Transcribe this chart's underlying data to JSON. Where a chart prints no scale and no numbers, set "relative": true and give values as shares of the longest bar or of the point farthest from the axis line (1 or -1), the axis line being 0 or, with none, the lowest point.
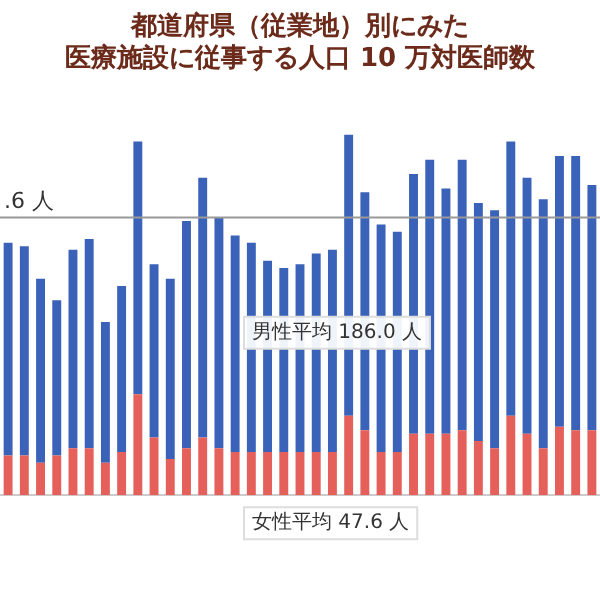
{
  "chart_data": {
    "type": "bar",
    "title": [
      "都道府県（従業地）別にみた",
      "医療施設に従事する人口 10 万対医師数"
    ],
    "relative": true,
    "stacked": true,
    "legend": false,
    "grid": false,
    "categories": [
      null,
      null,
      null,
      null,
      null,
      null,
      null,
      null,
      null,
      null,
      null,
      null,
      null,
      null,
      null,
      null,
      null,
      null,
      null,
      null,
      null,
      null,
      null,
      null,
      null,
      null,
      null,
      null,
      null,
      null,
      null,
      null,
      null,
      null,
      null,
      null,
      null
    ],
    "series": [
      {
        "color": "#e5605a",
        "values": [
          0.11,
          0.11,
          0.09,
          0.11,
          0.13,
          0.13,
          0.09,
          0.12,
          0.28,
          0.16,
          0.1,
          0.13,
          0.16,
          0.13,
          0.12,
          0.12,
          0.12,
          0.12,
          0.12,
          0.12,
          0.12,
          0.22,
          0.18,
          0.12,
          0.12,
          0.17,
          0.17,
          0.17,
          0.18,
          0.15,
          0.13,
          0.22,
          0.17,
          0.13,
          0.19,
          0.18,
          0.18
        ]
      },
      {
        "color": "#3a62b8",
        "values": [
          0.59,
          0.58,
          0.51,
          0.43,
          0.55,
          0.58,
          0.39,
          0.46,
          0.7,
          0.48,
          0.5,
          0.63,
          0.72,
          0.64,
          0.6,
          0.58,
          0.53,
          0.51,
          0.52,
          0.55,
          0.56,
          0.78,
          0.66,
          0.63,
          0.61,
          0.72,
          0.76,
          0.68,
          0.75,
          0.66,
          0.66,
          0.76,
          0.71,
          0.69,
          0.75,
          0.76,
          0.68
        ]
      }
    ],
    "ref_lines": [
      {
        "axis": "y",
        "value": 0.77,
        "label": ".6 人",
        "color": "#999999"
      }
    ],
    "annotations": [
      "男性平均 186.0 人",
      "女性平均 47.6 人"
    ]
  }
}
